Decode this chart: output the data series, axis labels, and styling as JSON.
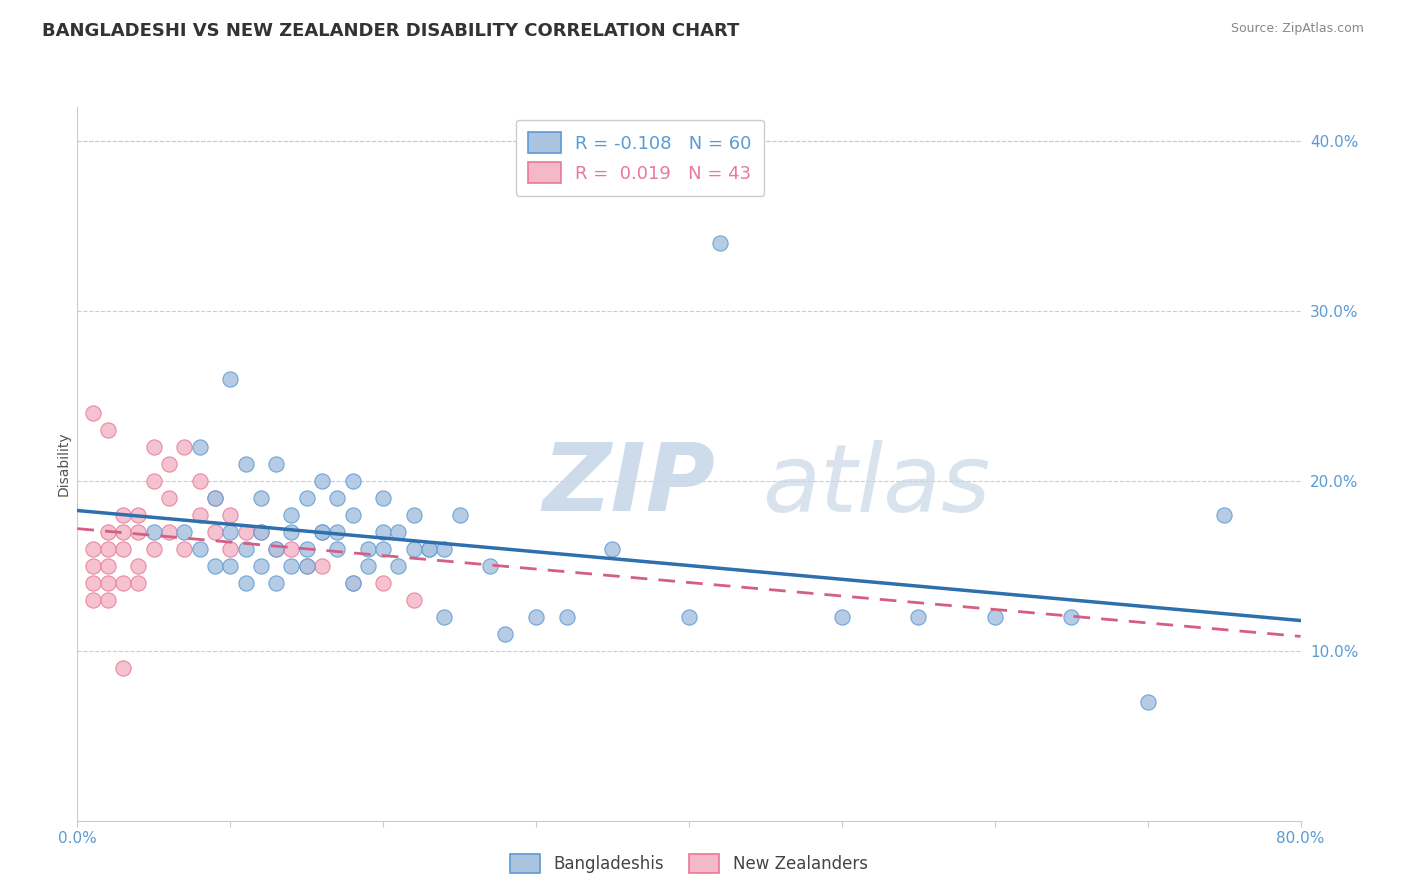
{
  "title": "BANGLADESHI VS NEW ZEALANDER DISABILITY CORRELATION CHART",
  "source": "Source: ZipAtlas.com",
  "ylabel": "Disability",
  "xlim": [
    0.0,
    0.8
  ],
  "ylim": [
    0.0,
    0.42
  ],
  "yticks": [
    0.1,
    0.2,
    0.3,
    0.4
  ],
  "ytick_labels": [
    "10.0%",
    "20.0%",
    "30.0%",
    "40.0%"
  ],
  "xticks": [
    0.0,
    0.1,
    0.2,
    0.3,
    0.4,
    0.5,
    0.6,
    0.7,
    0.8
  ],
  "blue_fill": "#aac4e0",
  "blue_edge": "#5b9bd5",
  "blue_line": "#2e6fad",
  "pink_fill": "#f4b8c8",
  "pink_edge": "#e8799a",
  "pink_line": "#d45f82",
  "legend_R_blue": "-0.108",
  "legend_N_blue": "60",
  "legend_R_pink": "0.019",
  "legend_N_pink": "43",
  "legend_label_blue": "Bangladeshis",
  "legend_label_pink": "New Zealanders",
  "watermark_zip": "ZIP",
  "watermark_atlas": "atlas",
  "background_color": "#ffffff",
  "grid_color": "#cccccc",
  "title_fontsize": 13,
  "axis_label_fontsize": 10,
  "tick_fontsize": 11,
  "blue_scatter_x": [
    0.05,
    0.07,
    0.08,
    0.09,
    0.1,
    0.1,
    0.11,
    0.11,
    0.12,
    0.12,
    0.13,
    0.13,
    0.14,
    0.14,
    0.15,
    0.15,
    0.16,
    0.16,
    0.17,
    0.17,
    0.18,
    0.18,
    0.19,
    0.2,
    0.2,
    0.21,
    0.22,
    0.23,
    0.24,
    0.25,
    0.08,
    0.09,
    0.1,
    0.11,
    0.12,
    0.13,
    0.14,
    0.15,
    0.16,
    0.17,
    0.18,
    0.19,
    0.2,
    0.21,
    0.22,
    0.23,
    0.24,
    0.27,
    0.28,
    0.3,
    0.32,
    0.35,
    0.4,
    0.42,
    0.5,
    0.55,
    0.6,
    0.65,
    0.7,
    0.75
  ],
  "blue_scatter_y": [
    0.17,
    0.17,
    0.16,
    0.15,
    0.17,
    0.15,
    0.16,
    0.14,
    0.17,
    0.15,
    0.16,
    0.14,
    0.15,
    0.17,
    0.16,
    0.15,
    0.17,
    0.2,
    0.19,
    0.16,
    0.2,
    0.14,
    0.15,
    0.17,
    0.19,
    0.15,
    0.18,
    0.16,
    0.16,
    0.18,
    0.22,
    0.19,
    0.26,
    0.21,
    0.19,
    0.21,
    0.18,
    0.19,
    0.17,
    0.17,
    0.18,
    0.16,
    0.16,
    0.17,
    0.16,
    0.16,
    0.12,
    0.15,
    0.11,
    0.12,
    0.12,
    0.16,
    0.12,
    0.34,
    0.12,
    0.12,
    0.12,
    0.12,
    0.07,
    0.18
  ],
  "pink_scatter_x": [
    0.01,
    0.01,
    0.01,
    0.01,
    0.02,
    0.02,
    0.02,
    0.02,
    0.02,
    0.03,
    0.03,
    0.03,
    0.03,
    0.04,
    0.04,
    0.04,
    0.04,
    0.05,
    0.05,
    0.05,
    0.06,
    0.06,
    0.06,
    0.07,
    0.07,
    0.08,
    0.08,
    0.09,
    0.09,
    0.1,
    0.1,
    0.11,
    0.12,
    0.13,
    0.14,
    0.15,
    0.16,
    0.18,
    0.2,
    0.22,
    0.01,
    0.02,
    0.03
  ],
  "pink_scatter_y": [
    0.16,
    0.15,
    0.14,
    0.13,
    0.17,
    0.16,
    0.15,
    0.14,
    0.13,
    0.18,
    0.17,
    0.16,
    0.14,
    0.18,
    0.17,
    0.15,
    0.14,
    0.22,
    0.2,
    0.16,
    0.21,
    0.19,
    0.17,
    0.22,
    0.16,
    0.2,
    0.18,
    0.19,
    0.17,
    0.18,
    0.16,
    0.17,
    0.17,
    0.16,
    0.16,
    0.15,
    0.15,
    0.14,
    0.14,
    0.13,
    0.24,
    0.23,
    0.09
  ]
}
